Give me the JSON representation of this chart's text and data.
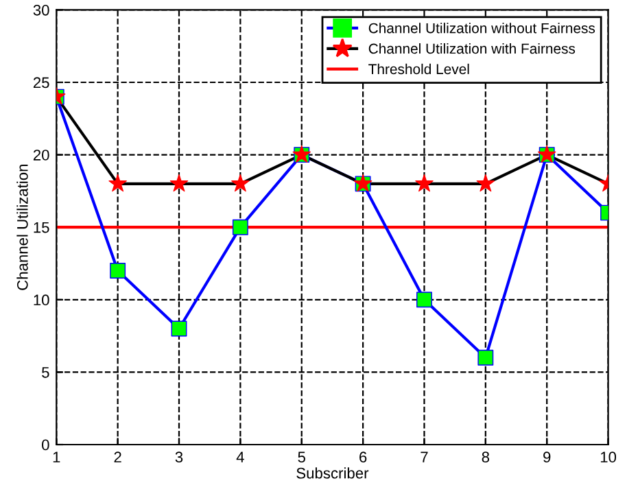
{
  "chart_data": {
    "type": "line",
    "xlabel": "Subscriber",
    "ylabel": "Channel Utilization",
    "x": [
      1,
      2,
      3,
      4,
      5,
      6,
      7,
      8,
      9,
      10
    ],
    "series": [
      {
        "name": "Channel Utilization without Fairness",
        "color": "#0000ff",
        "marker": "square",
        "colors": [
          "#00ff00",
          "#00ff00",
          "#00ff00",
          "#00ff00",
          "#00ff00",
          "#00ff00",
          "#00ff00",
          "#00ff00",
          "#00ff00",
          "#00ff00"
        ],
        "values": [
          24,
          12,
          8,
          15,
          20,
          18,
          10,
          6,
          20,
          16
        ]
      },
      {
        "name": "Channel Utilization with Fairness",
        "color": "#000000",
        "marker": "star",
        "colors": [
          "#ff0000",
          "#ff0000",
          "#ff0000",
          "#ff0000",
          "#ff0000",
          "#ff0000",
          "#ff0000",
          "#ff0000",
          "#ff0000",
          "#ff0000"
        ],
        "values": [
          24,
          18,
          18,
          18,
          20,
          18,
          18,
          18,
          20,
          18
        ]
      }
    ],
    "ref_lines": [
      {
        "axis": "y",
        "value": 15,
        "label": "Threshold Level",
        "color": "#ff0000",
        "line_style": "solid"
      }
    ],
    "xlim": [
      1,
      10
    ],
    "xticks": [
      1,
      2,
      3,
      4,
      5,
      6,
      7,
      8,
      9,
      10
    ],
    "ylim": [
      0,
      30
    ],
    "yticks": [
      0,
      5,
      10,
      15,
      20,
      25,
      30
    ],
    "grid": true,
    "legend": "top right",
    "line_style": "solid"
  }
}
